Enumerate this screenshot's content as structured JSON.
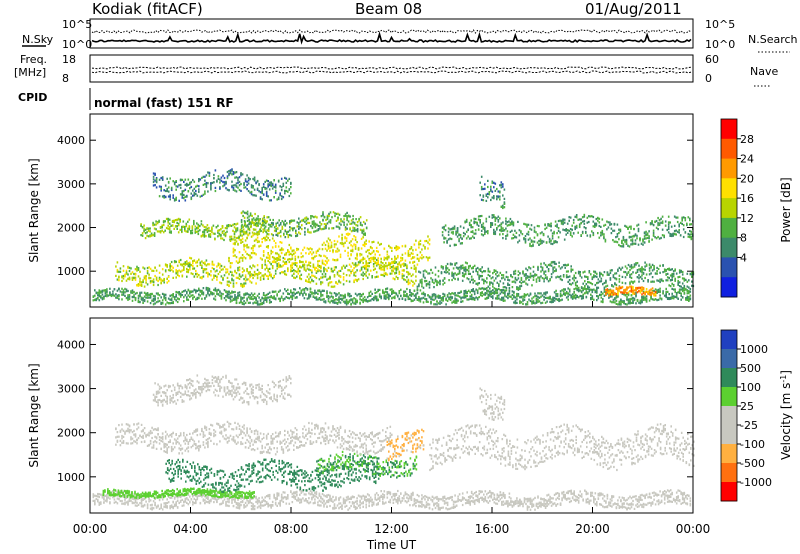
{
  "header": {
    "station": "Kodiak (fitACF)",
    "beam": "Beam 08",
    "date": "01/Aug/2011"
  },
  "top_panels": {
    "nsky_label": "N.Sky",
    "nsearch_label": "N.Search",
    "noise_ticks": [
      "10^5",
      "10^0"
    ],
    "freq_label_1": "Freq.",
    "freq_label_2": "[MHz]",
    "freq_ticks": [
      "18",
      "8"
    ],
    "nave_label": "Nave",
    "nave_ticks": [
      "60",
      "0"
    ],
    "cpid_label": "CPID",
    "cpid_value": "normal (fast) 151 RF"
  },
  "chart_data": [
    {
      "type": "heatmap",
      "name": "power",
      "ylabel": "Slant Range [km]",
      "ylim": [
        180,
        4600
      ],
      "yticks": [
        1000,
        2000,
        3000,
        4000
      ],
      "xticks": [
        "00:00",
        "04:00",
        "08:00",
        "12:00",
        "16:00",
        "20:00",
        "00:00"
      ],
      "colorbar": {
        "label": "Power [dB]",
        "ticks": [
          "28",
          "24",
          "20",
          "16",
          "12",
          "8",
          "4"
        ],
        "colors": [
          "#ff0000",
          "#ff5a00",
          "#ff9a00",
          "#ffe000",
          "#b8d400",
          "#4fb040",
          "#3c8a6a",
          "#2a52b0",
          "#1020e0"
        ]
      },
      "echo_bands": [
        {
          "t_start": 0.1,
          "t_end": 23.9,
          "range_center": 450,
          "range_width": 260,
          "level": 10
        },
        {
          "t_start": 1.0,
          "t_end": 13.0,
          "range_center": 1000,
          "range_width": 450,
          "level": 16
        },
        {
          "t_start": 2.0,
          "t_end": 7.0,
          "range_center": 2000,
          "range_width": 350,
          "level": 14
        },
        {
          "t_start": 5.5,
          "t_end": 13.5,
          "range_center": 1450,
          "range_width": 600,
          "level": 18
        },
        {
          "t_start": 6.0,
          "t_end": 11.0,
          "range_center": 2100,
          "range_width": 400,
          "level": 12
        },
        {
          "t_start": 2.5,
          "t_end": 8.0,
          "range_center": 3000,
          "range_width": 500,
          "level": 8
        },
        {
          "t_start": 14.0,
          "t_end": 24.0,
          "range_center": 1950,
          "range_width": 500,
          "level": 10
        },
        {
          "t_start": 15.5,
          "t_end": 16.5,
          "range_center": 2800,
          "range_width": 600,
          "level": 8
        },
        {
          "t_start": 13.0,
          "t_end": 24.0,
          "range_center": 900,
          "range_width": 450,
          "level": 10
        },
        {
          "t_start": 20.5,
          "t_end": 22.5,
          "range_center": 550,
          "range_width": 180,
          "level": 24
        }
      ]
    },
    {
      "type": "heatmap",
      "name": "velocity",
      "xlabel": "Time UT",
      "ylabel": "Slant Range [km]",
      "ylim": [
        180,
        4600
      ],
      "yticks": [
        1000,
        2000,
        3000,
        4000
      ],
      "xticks": [
        "00:00",
        "04:00",
        "08:00",
        "12:00",
        "16:00",
        "20:00",
        "00:00"
      ],
      "colorbar": {
        "label_main": "Velocity",
        "label_unit": "[m s",
        "label_exp": "-1",
        "label_close": "]",
        "ticks": [
          "1000",
          "500",
          "100",
          "25",
          "-25",
          "-100",
          "-500",
          "-1000"
        ],
        "colors": [
          "#2040c0",
          "#3a6aa8",
          "#2f8a5a",
          "#5cd030",
          "#c8c8c0",
          "#c8c8c0",
          "#ffb040",
          "#ff7010",
          "#ff0000"
        ]
      },
      "echo_bands": [
        {
          "t_start": 0.1,
          "t_end": 23.9,
          "range_center": 500,
          "range_width": 300,
          "level": 0
        },
        {
          "t_start": 0.5,
          "t_end": 6.5,
          "range_center": 650,
          "range_width": 150,
          "level": 60
        },
        {
          "t_start": 3.0,
          "t_end": 11.5,
          "range_center": 1050,
          "range_width": 500,
          "level": 150
        },
        {
          "t_start": 9.0,
          "t_end": 13.0,
          "range_center": 1300,
          "range_width": 400,
          "level": 100
        },
        {
          "t_start": 11.8,
          "t_end": 13.3,
          "range_center": 1750,
          "range_width": 500,
          "level": -120
        },
        {
          "t_start": 1.0,
          "t_end": 12.0,
          "range_center": 1900,
          "range_width": 500,
          "level": 0
        },
        {
          "t_start": 2.5,
          "t_end": 8.0,
          "range_center": 3000,
          "range_width": 500,
          "level": 0
        },
        {
          "t_start": 13.5,
          "t_end": 24.0,
          "range_center": 1700,
          "range_width": 700,
          "level": 0
        },
        {
          "t_start": 15.5,
          "t_end": 16.5,
          "range_center": 2700,
          "range_width": 600,
          "level": 0
        }
      ]
    }
  ]
}
